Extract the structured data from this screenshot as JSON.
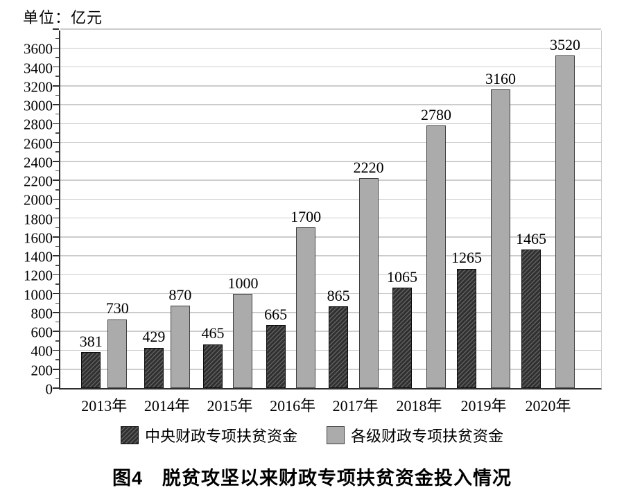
{
  "unit_label": "单位：亿元",
  "caption": "图4　脱贫攻坚以来财政专项扶贫资金投入情况",
  "chart_data": {
    "type": "bar",
    "title": "脱贫攻坚以来财政专项扶贫资金投入情况",
    "figure_label": "图4",
    "unit_note": "单位：亿元",
    "categories": [
      "2013年",
      "2014年",
      "2015年",
      "2016年",
      "2017年",
      "2018年",
      "2019年",
      "2020年"
    ],
    "series": [
      {
        "name": "中央财政专项扶贫资金",
        "style": "dark-hatched",
        "values": [
          381,
          429,
          465,
          665,
          865,
          1065,
          1265,
          1465
        ]
      },
      {
        "name": "各级财政专项扶贫资金",
        "style": "gray-solid",
        "values": [
          730,
          870,
          1000,
          1700,
          2220,
          2780,
          3160,
          3520
        ]
      }
    ],
    "y_axis": {
      "min": 0,
      "max": 3800,
      "major_step": 200,
      "minor_step": 100,
      "labeled_min": 0,
      "labeled_max": 3600
    },
    "grid": "horizontal-light-gray",
    "legend_position": "bottom",
    "value_labels": true
  },
  "colors": {
    "dark_bar": "#303030",
    "dark_bar_hatch": "#616161",
    "gray_bar": "#ababab",
    "gray_bar_border": "#3f3f3f",
    "gridline": "#cccccc",
    "axis": "#2f2f2f",
    "text": "#000000",
    "background": "#ffffff"
  }
}
